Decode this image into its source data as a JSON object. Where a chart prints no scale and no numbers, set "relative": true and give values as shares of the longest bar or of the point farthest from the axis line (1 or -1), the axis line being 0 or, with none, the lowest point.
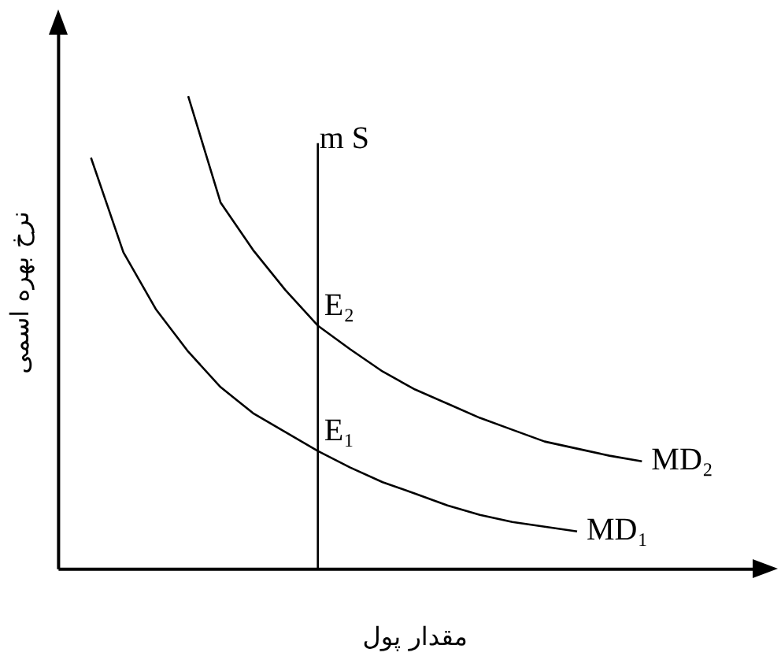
{
  "chart_data": {
    "type": "line",
    "relative": true,
    "xlabel": "مقدار پول",
    "ylabel": "نرخ بهره اسمی",
    "marker": "none",
    "line_style": "solid",
    "legend": false,
    "grid": false,
    "categories": [
      null,
      null,
      null,
      null,
      null,
      null,
      null,
      null,
      null,
      null,
      null,
      null,
      null,
      null,
      null,
      null,
      null,
      null,
      null,
      null,
      null,
      null,
      null
    ],
    "series": [
      {
        "name": "MD₁",
        "color": "#000000",
        "values": [
          null,
          0.87,
          0.67,
          0.55,
          0.46,
          0.385,
          0.33,
          0.29,
          0.25,
          0.215,
          0.184,
          0.16,
          0.135,
          0.115,
          0.1,
          0.09,
          0.08,
          null,
          null,
          null,
          null,
          null,
          null
        ]
      },
      {
        "name": "MD₂",
        "color": "#000000",
        "values": [
          null,
          null,
          null,
          null,
          1,
          0.775,
          0.675,
          0.59,
          0.515,
          0.465,
          0.418,
          0.38,
          0.35,
          0.32,
          0.295,
          0.27,
          0.255,
          0.24,
          0.228,
          null,
          null,
          null,
          null
        ]
      }
    ],
    "annotations": [
      "m S",
      "E₁",
      "E₂"
    ]
  }
}
